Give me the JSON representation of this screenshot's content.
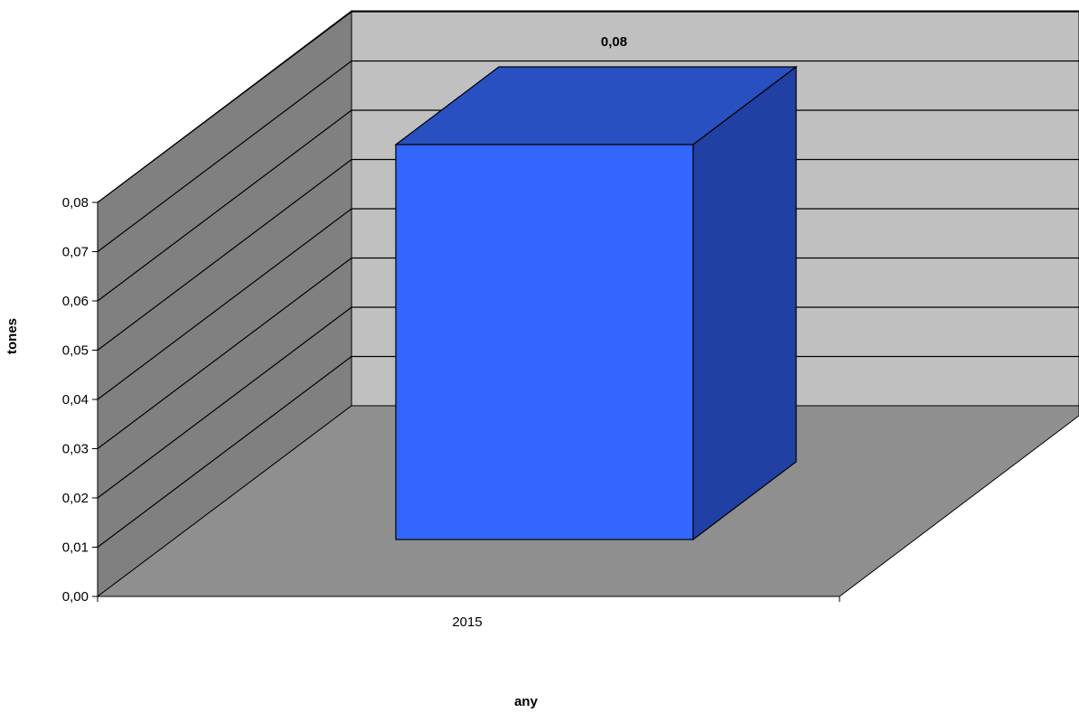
{
  "chart_data": {
    "type": "bar",
    "title": "",
    "categories": [
      "2015"
    ],
    "series": [
      {
        "values": [
          0.08
        ]
      }
    ],
    "xlabel": "any",
    "ylabel": "tones",
    "ylim": [
      0,
      0.08
    ],
    "yticks": [
      "0,00",
      "0,01",
      "0,02",
      "0,03",
      "0,04",
      "0,05",
      "0,06",
      "0,07",
      "0,08"
    ],
    "data_labels": [
      "0,08"
    ],
    "grid": true,
    "legend": "none",
    "colors": {
      "bar_front": "#3366FF",
      "bar_top": "#2850C0",
      "bar_side": "#2140A3",
      "back_wall": "#C0C0C0",
      "side_wall": "#808080",
      "floor": "#8F8F8F"
    }
  }
}
